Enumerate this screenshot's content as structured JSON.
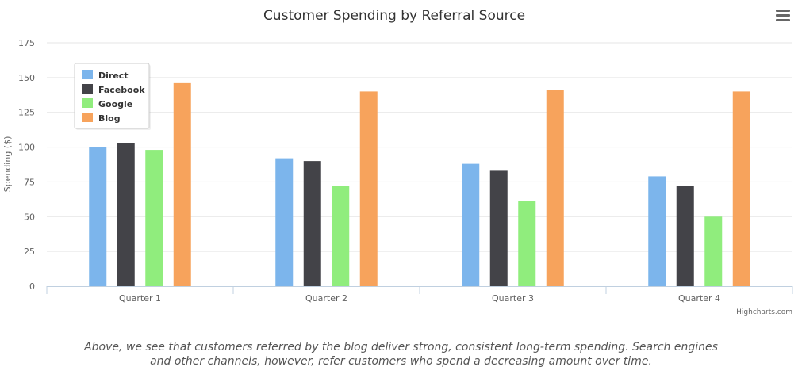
{
  "chart_data": {
    "type": "bar",
    "title": "Customer Spending by Referral Source",
    "xlabel": "",
    "ylabel": "Spending ($)",
    "ylim": [
      0,
      175
    ],
    "yticks": [
      0,
      25,
      50,
      75,
      100,
      125,
      150,
      175
    ],
    "categories": [
      "Quarter 1",
      "Quarter 2",
      "Quarter 3",
      "Quarter 4"
    ],
    "series": [
      {
        "name": "Direct",
        "color": "#7cb5ec",
        "values": [
          100,
          92,
          88,
          79
        ]
      },
      {
        "name": "Facebook",
        "color": "#434348",
        "values": [
          103,
          90,
          83,
          72
        ]
      },
      {
        "name": "Google",
        "color": "#90ed7d",
        "values": [
          98,
          72,
          61,
          50
        ]
      },
      {
        "name": "Blog",
        "color": "#f7a35c",
        "values": [
          146,
          140,
          141,
          140
        ]
      }
    ],
    "grid": true,
    "legend_position": "top-left"
  },
  "credits": "Highcharts.com",
  "menu_icon": "hamburger-menu-icon",
  "caption_lines": [
    "Above, we see that customers referred by the blog deliver strong, consistent long-term spending. Search engines",
    "and other channels, however, refer customers who spend a decreasing amount over time."
  ]
}
